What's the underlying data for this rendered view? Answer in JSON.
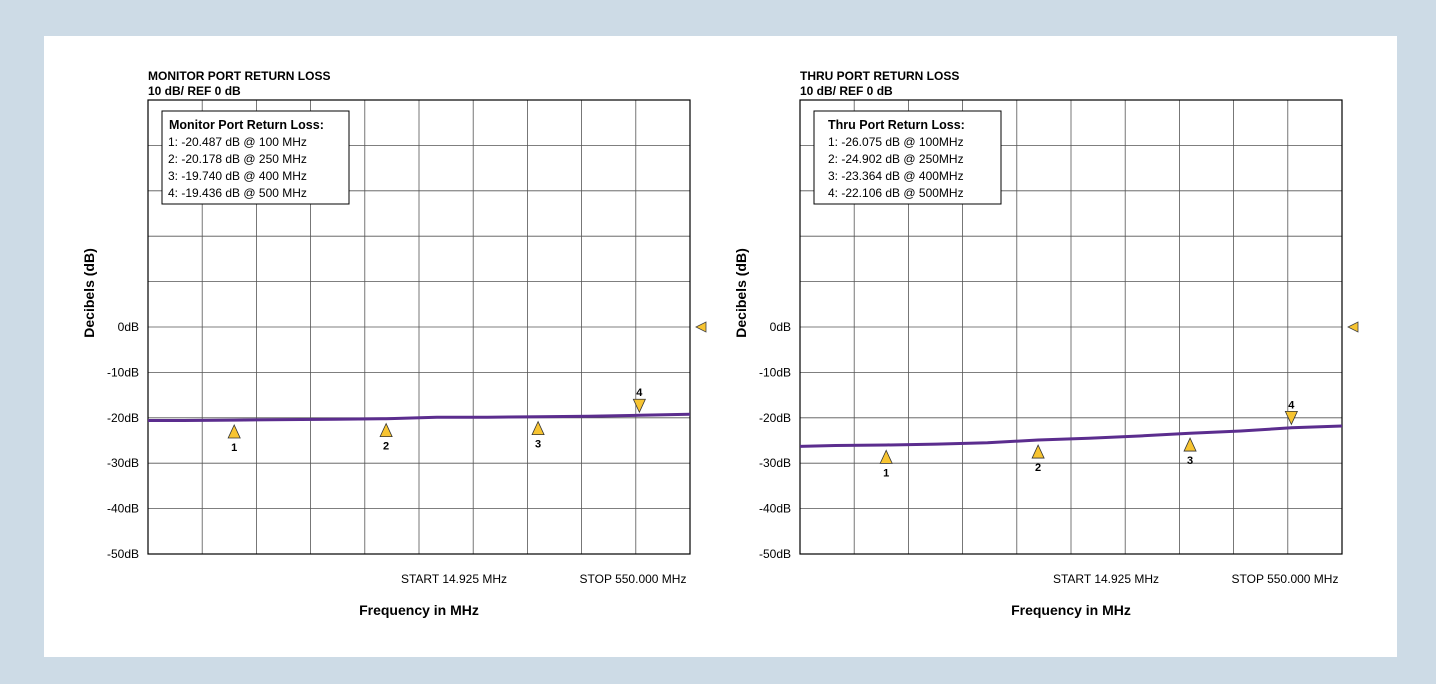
{
  "chart_data": [
    {
      "type": "line",
      "title": "MONITOR PORT RETURN LOSS",
      "subtitle": "10 dB/  REF 0 dB",
      "xlabel": "Frequency in MHz",
      "ylabel": "Decibels (dB)",
      "x_start_label": "START 14.925 MHz",
      "x_stop_label": "STOP 550.000 MHz",
      "xlim": [
        14.925,
        550
      ],
      "ylim": [
        -50,
        50
      ],
      "y_ticks": [
        {
          "v": 0,
          "label": "0dB"
        },
        {
          "v": -10,
          "label": "-10dB"
        },
        {
          "v": -20,
          "label": "-20dB"
        },
        {
          "v": -30,
          "label": "-30dB"
        },
        {
          "v": -40,
          "label": "-40dB"
        },
        {
          "v": -50,
          "label": "-50dB"
        }
      ],
      "legend_title": "Monitor Port Return Loss:",
      "legend_items": [
        "1: -20.487 dB @ 100 MHz",
        "2: -20.178 dB @ 250 MHz",
        "3: -19.740 dB @ 400 MHz",
        "4: -19.436 dB @ 500 MHz"
      ],
      "markers": [
        {
          "label": "1",
          "x": 100,
          "y": -20.487,
          "side": "below"
        },
        {
          "label": "2",
          "x": 250,
          "y": -20.178,
          "side": "below"
        },
        {
          "label": "3",
          "x": 400,
          "y": -19.74,
          "side": "below"
        },
        {
          "label": "4",
          "x": 500,
          "y": -19.436,
          "side": "above"
        }
      ],
      "series": [
        {
          "color": "#5b2d8e",
          "x": [
            14.925,
            50,
            100,
            150,
            200,
            250,
            300,
            350,
            400,
            450,
            500,
            550
          ],
          "y": [
            -20.6,
            -20.6,
            -20.5,
            -20.4,
            -20.3,
            -20.2,
            -19.9,
            -19.9,
            -19.75,
            -19.65,
            -19.45,
            -19.2
          ]
        }
      ]
    },
    {
      "type": "line",
      "title": "THRU PORT RETURN LOSS",
      "subtitle": "10 dB/  REF 0 dB",
      "xlabel": "Frequency in MHz",
      "ylabel": "Decibels (dB)",
      "x_start_label": "START 14.925 MHz",
      "x_stop_label": "STOP 550.000 MHz",
      "xlim": [
        14.925,
        550
      ],
      "ylim": [
        -50,
        50
      ],
      "y_ticks": [
        {
          "v": 0,
          "label": "0dB"
        },
        {
          "v": -10,
          "label": "-10dB"
        },
        {
          "v": -20,
          "label": "-20dB"
        },
        {
          "v": -30,
          "label": "-30dB"
        },
        {
          "v": -40,
          "label": "-40dB"
        },
        {
          "v": -50,
          "label": "-50dB"
        }
      ],
      "legend_title": "Thru Port Return Loss:",
      "legend_items": [
        "1: -26.075 dB @ 100MHz",
        "2: -24.902 dB @ 250MHz",
        "3: -23.364 dB @ 400MHz",
        "4: -22.106 dB @ 500MHz"
      ],
      "markers": [
        {
          "label": "1",
          "x": 100,
          "y": -26.075,
          "side": "below"
        },
        {
          "label": "2",
          "x": 250,
          "y": -24.902,
          "side": "below"
        },
        {
          "label": "3",
          "x": 400,
          "y": -23.364,
          "side": "below"
        },
        {
          "label": "4",
          "x": 500,
          "y": -22.106,
          "side": "above"
        }
      ],
      "series": [
        {
          "color": "#5b2d8e",
          "x": [
            14.925,
            50,
            100,
            150,
            200,
            250,
            300,
            350,
            400,
            450,
            500,
            550
          ],
          "y": [
            -26.3,
            -26.1,
            -26.0,
            -25.8,
            -25.5,
            -24.9,
            -24.5,
            -24.0,
            -23.4,
            -22.9,
            -22.2,
            -21.8
          ]
        }
      ]
    }
  ]
}
